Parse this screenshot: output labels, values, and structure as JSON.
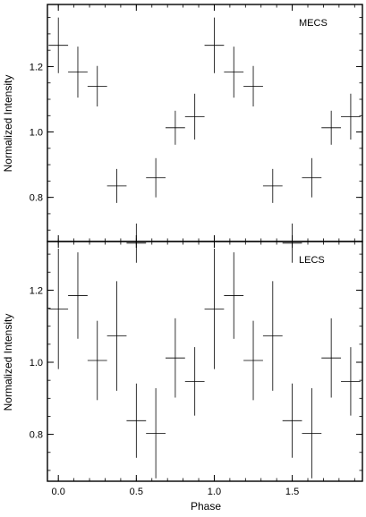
{
  "figure": {
    "xlabel": "Phase",
    "ylabel": "Normalized Intensity",
    "x_ticks": [
      0.0,
      0.5,
      1.0,
      1.5
    ],
    "x_tick_labels": [
      "0.0",
      "0.5",
      "1.0",
      "1.5"
    ],
    "xlim": [
      -0.07,
      1.95
    ]
  },
  "chart_data": [
    {
      "type": "scatter",
      "style": "error-bar crosses",
      "title": "MECS",
      "xlabel": "Phase",
      "ylabel": "Normalized Intensity",
      "xlim": [
        -0.07,
        1.95
      ],
      "ylim": [
        0.665,
        1.39
      ],
      "yticks": [
        0.8,
        1.0,
        1.2
      ],
      "ytick_labels": [
        "0.8",
        "1.0",
        "1.2"
      ],
      "x_half_width": 0.0625,
      "x": [
        0.0,
        0.125,
        0.25,
        0.375,
        0.5,
        0.625,
        0.75,
        0.875,
        1.0,
        1.125,
        1.25,
        1.375,
        1.5,
        1.625,
        1.75,
        1.875
      ],
      "y": [
        1.265,
        1.183,
        1.14,
        0.835,
        0.66,
        0.86,
        1.013,
        1.047,
        1.265,
        1.183,
        1.14,
        0.835,
        0.66,
        0.86,
        1.013,
        1.047
      ],
      "y_err": [
        0.085,
        0.078,
        0.062,
        0.052,
        0.06,
        0.06,
        0.052,
        0.07,
        0.085,
        0.078,
        0.062,
        0.052,
        0.06,
        0.06,
        0.052,
        0.07
      ],
      "grid": false
    },
    {
      "type": "scatter",
      "style": "error-bar crosses",
      "title": "LECS",
      "xlabel": "Phase",
      "ylabel": "Normalized Intensity",
      "xlim": [
        -0.07,
        1.95
      ],
      "ylim": [
        0.67,
        1.335
      ],
      "yticks": [
        0.8,
        1.0,
        1.2
      ],
      "ytick_labels": [
        "0.8",
        "1.0",
        "1.2"
      ],
      "x_half_width": 0.0625,
      "x": [
        0.0,
        0.125,
        0.25,
        0.375,
        0.5,
        0.625,
        0.75,
        0.875,
        1.0,
        1.125,
        1.25,
        1.375,
        1.5,
        1.625,
        1.75,
        1.875
      ],
      "y": [
        1.148,
        1.185,
        1.005,
        1.073,
        0.838,
        0.803,
        1.012,
        0.947,
        1.148,
        1.185,
        1.005,
        1.073,
        0.838,
        0.803,
        1.012,
        0.947
      ],
      "y_err": [
        0.167,
        0.12,
        0.11,
        0.152,
        0.103,
        0.125,
        0.11,
        0.095,
        0.167,
        0.12,
        0.11,
        0.152,
        0.103,
        0.125,
        0.11,
        0.095
      ],
      "grid": false
    }
  ]
}
